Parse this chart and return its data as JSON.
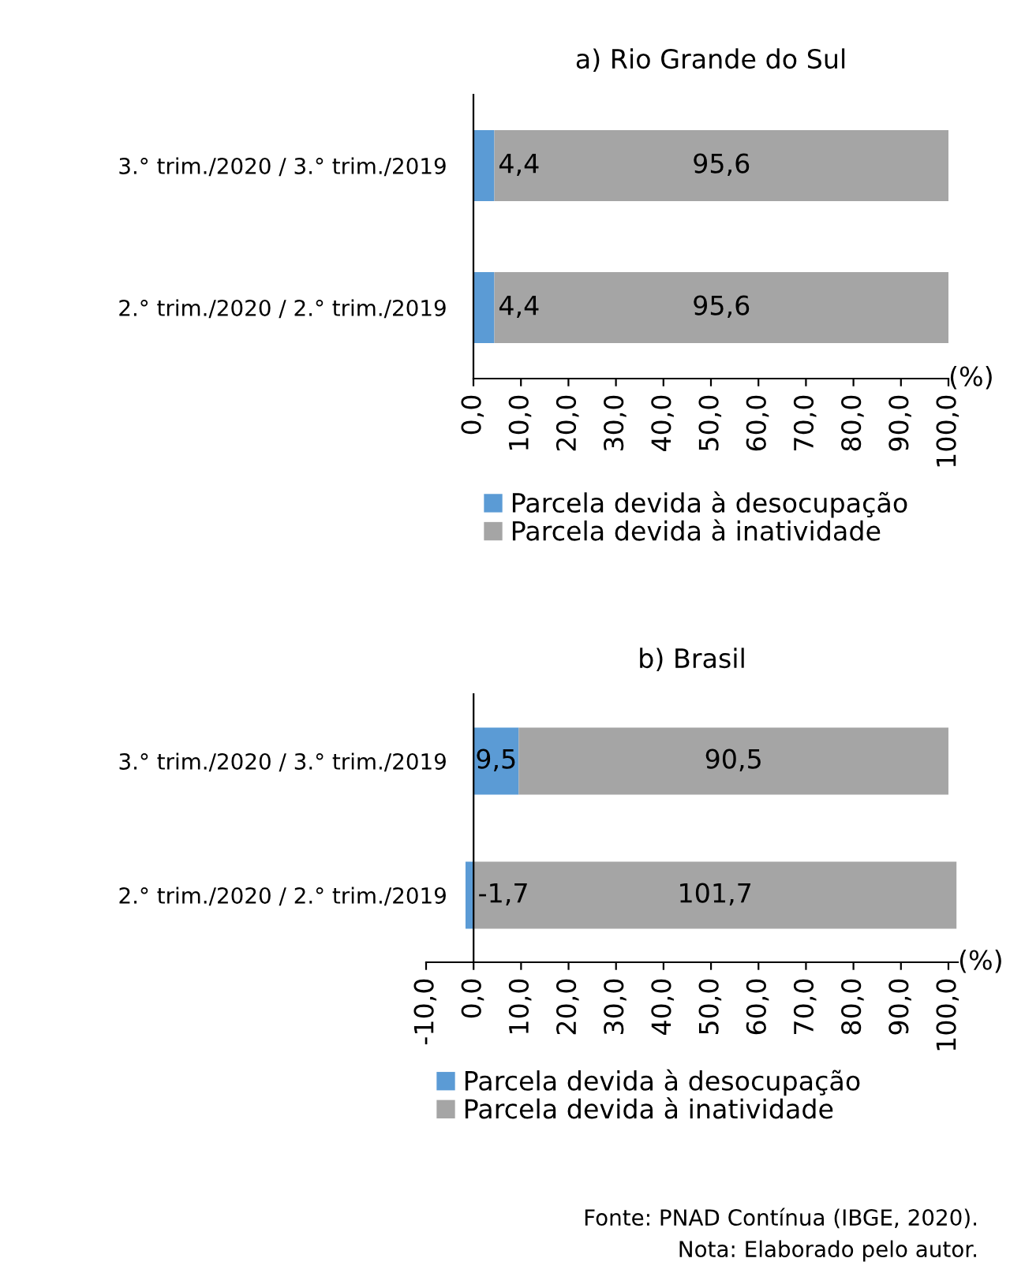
{
  "chart_data": [
    {
      "type": "bar",
      "orientation": "horizontal",
      "stacked": true,
      "title": "a) Rio Grande do Sul",
      "xlabel": "(%)",
      "categories": [
        "3.° trim./2020 / 3.° trim./2019",
        "2.° trim./2020 / 2.° trim./2019"
      ],
      "series": [
        {
          "name": "Parcela devida à desocupação",
          "color": "#5b9bd5",
          "values": [
            4.4,
            4.4
          ],
          "value_labels": [
            "4,4",
            "4,4"
          ]
        },
        {
          "name": "Parcela devida à inatividade",
          "color": "#a5a5a5",
          "values": [
            95.6,
            95.6
          ],
          "value_labels": [
            "95,6",
            "95,6"
          ]
        }
      ],
      "xlim": [
        0,
        100
      ],
      "xticks": [
        {
          "value": 0,
          "label": "0,0"
        },
        {
          "value": 10,
          "label": "10,0"
        },
        {
          "value": 20,
          "label": "20,0"
        },
        {
          "value": 30,
          "label": "30,0"
        },
        {
          "value": 40,
          "label": "40,0"
        },
        {
          "value": 50,
          "label": "50,0"
        },
        {
          "value": 60,
          "label": "60,0"
        },
        {
          "value": 70,
          "label": "70,0"
        },
        {
          "value": 80,
          "label": "80,0"
        },
        {
          "value": 90,
          "label": "90,0"
        },
        {
          "value": 100,
          "label": "100,0"
        }
      ],
      "grid": false,
      "legend": "bottom"
    },
    {
      "type": "bar",
      "orientation": "horizontal",
      "stacked": true,
      "title": "b) Brasil",
      "xlabel": "(%)",
      "categories": [
        "3.° trim./2020 / 3.° trim./2019",
        "2.° trim./2020 / 2.° trim./2019"
      ],
      "series": [
        {
          "name": "Parcela devida à desocupação",
          "color": "#5b9bd5",
          "values": [
            9.5,
            -1.7
          ],
          "value_labels": [
            "9,5",
            "-1,7"
          ]
        },
        {
          "name": "Parcela devida à inatividade",
          "color": "#a5a5a5",
          "values": [
            90.5,
            101.7
          ],
          "value_labels": [
            "90,5",
            "101,7"
          ]
        }
      ],
      "xlim": [
        -10,
        102
      ],
      "xticks": [
        {
          "value": -10,
          "label": "-10,0"
        },
        {
          "value": 0,
          "label": "0,0"
        },
        {
          "value": 10,
          "label": "10,0"
        },
        {
          "value": 20,
          "label": "20,0"
        },
        {
          "value": 30,
          "label": "30,0"
        },
        {
          "value": 40,
          "label": "40,0"
        },
        {
          "value": 50,
          "label": "50,0"
        },
        {
          "value": 60,
          "label": "60,0"
        },
        {
          "value": 70,
          "label": "70,0"
        },
        {
          "value": 80,
          "label": "80,0"
        },
        {
          "value": 90,
          "label": "90,0"
        },
        {
          "value": 100,
          "label": "100,0"
        }
      ],
      "grid": false,
      "legend": "bottom",
      "annotations": [
        "Fonte: PNAD Contínua (IBGE, 2020).",
        "Nota: Elaborado pelo autor."
      ]
    }
  ]
}
